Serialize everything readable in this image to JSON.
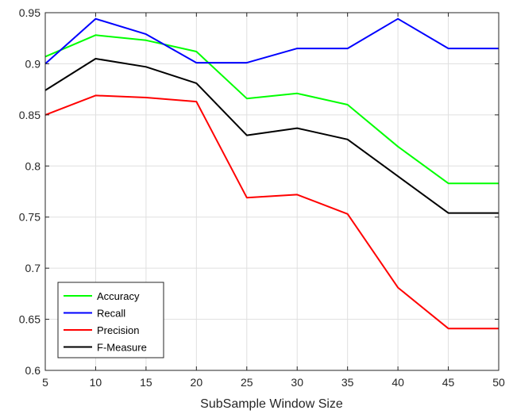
{
  "chart_data": {
    "type": "line",
    "xlabel": "SubSample Window Size",
    "ylabel": "",
    "xlim": [
      5,
      50
    ],
    "ylim": [
      0.6,
      0.95
    ],
    "xticks": [
      "5",
      "10",
      "15",
      "20",
      "25",
      "30",
      "35",
      "40",
      "45",
      "50"
    ],
    "yticks": [
      "0.6",
      "0.65",
      "0.7",
      "0.75",
      "0.8",
      "0.85",
      "0.9",
      "0.95"
    ],
    "grid": true,
    "legend_position": "bottom-left",
    "x": [
      5,
      10,
      15,
      20,
      25,
      30,
      35,
      40,
      45,
      50
    ],
    "series": [
      {
        "name": "Accuracy",
        "color": "#00ff00",
        "values": [
          0.907,
          0.928,
          0.923,
          0.912,
          0.866,
          0.871,
          0.86,
          0.819,
          0.783,
          0.783
        ]
      },
      {
        "name": "Recall",
        "color": "#0000ff",
        "values": [
          0.9,
          0.944,
          0.929,
          0.901,
          0.901,
          0.915,
          0.915,
          0.944,
          0.915,
          0.915
        ]
      },
      {
        "name": "Precision",
        "color": "#ff0000",
        "values": [
          0.85,
          0.869,
          0.867,
          0.863,
          0.769,
          0.772,
          0.753,
          0.681,
          0.641,
          0.641
        ]
      },
      {
        "name": "F-Measure",
        "color": "#000000",
        "values": [
          0.874,
          0.905,
          0.897,
          0.881,
          0.83,
          0.837,
          0.826,
          0.79,
          0.754,
          0.754
        ]
      }
    ]
  }
}
